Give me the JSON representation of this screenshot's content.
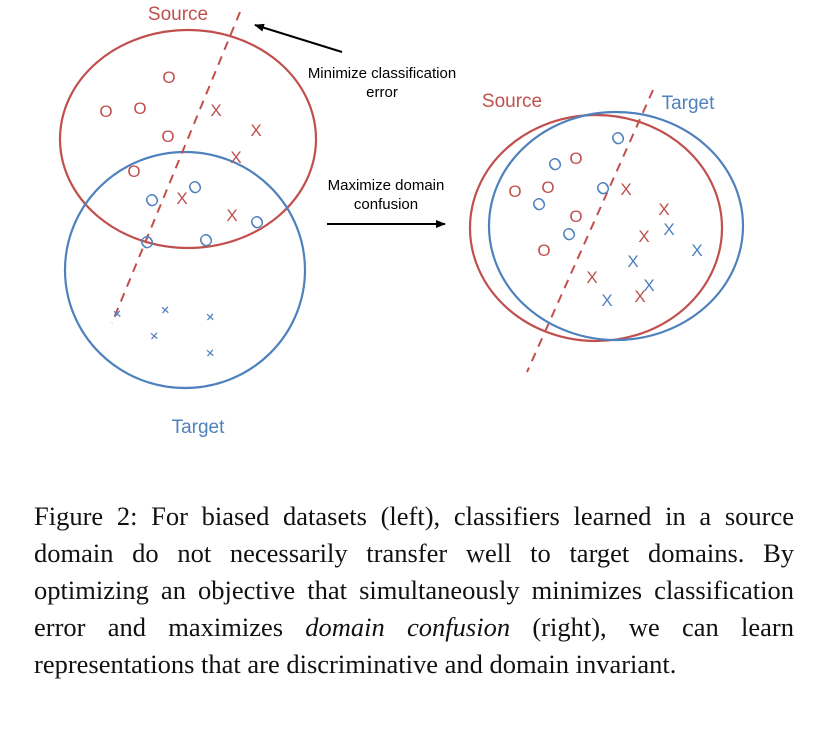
{
  "colors": {
    "source": "#c0504d",
    "target": "#4f81bd",
    "text": "#000000"
  },
  "left_panel": {
    "source_label": "Source",
    "target_label": "Target",
    "source_o_glyph": "O",
    "source_x_glyph": "X",
    "target_o_glyph": "O",
    "target_x_glyph": "+"
  },
  "right_panel": {
    "source_label": "Source",
    "target_label": "Target",
    "source_o_glyph": "O",
    "source_x_glyph": "X",
    "target_o_glyph": "O",
    "target_x_glyph": "X"
  },
  "arrows": {
    "minimize_line1": "Minimize classification",
    "minimize_line2": "error",
    "maximize_line1": "Maximize domain",
    "maximize_line2": "confusion"
  },
  "caption": {
    "part1": "Figure 2: For biased datasets (left), classifiers learned in a source domain do not necessarily transfer well to target domains. By optimizing an objective that simultaneously minimizes classification error and maximizes ",
    "emphasis": "domain confusion",
    "part2": " (right), we can learn representations that are discriminative and domain invariant."
  }
}
